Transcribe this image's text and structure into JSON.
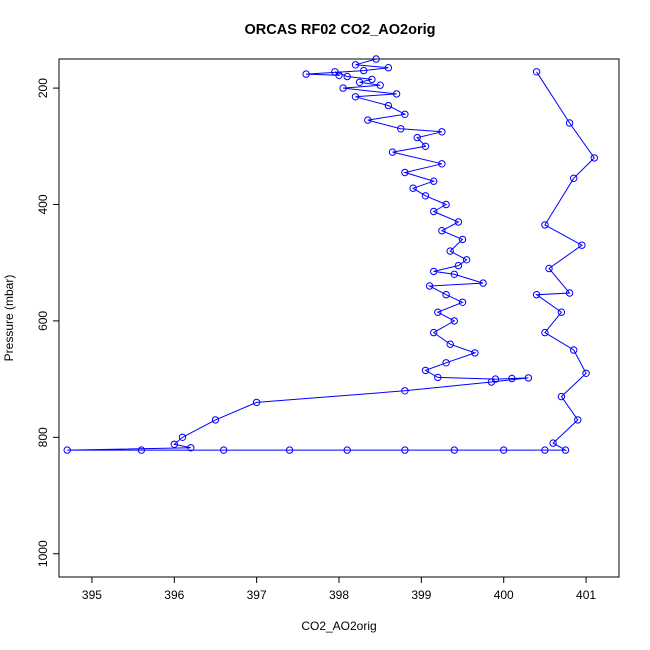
{
  "chart_data": {
    "type": "line",
    "title": "ORCAS RF02 CO2_AO2orig",
    "xlabel": "CO2_AO2orig",
    "ylabel": "Pressure (mbar)",
    "xlim": [
      394.6,
      401.4
    ],
    "ylim": [
      1040,
      150
    ],
    "y_reversed": true,
    "grid": false,
    "marker": "open-circle",
    "color": "#0000ff",
    "xticks": [
      "395",
      "396",
      "397",
      "398",
      "399",
      "400",
      "401"
    ],
    "yticks": [
      "200",
      "400",
      "600",
      "800",
      "1000"
    ],
    "series": [
      {
        "name": "",
        "points": [
          [
            398.45,
            150
          ],
          [
            398.2,
            160
          ],
          [
            398.6,
            165
          ],
          [
            398.3,
            170
          ],
          [
            397.6,
            176
          ],
          [
            398.0,
            178
          ],
          [
            397.95,
            172
          ],
          [
            398.1,
            180
          ],
          [
            398.4,
            185
          ],
          [
            398.25,
            190
          ],
          [
            398.5,
            195
          ],
          [
            398.05,
            200
          ],
          [
            398.7,
            210
          ],
          [
            398.2,
            215
          ],
          [
            398.6,
            230
          ],
          [
            398.8,
            245
          ],
          [
            398.35,
            255
          ],
          [
            398.75,
            270
          ],
          [
            399.25,
            275
          ],
          [
            398.95,
            285
          ],
          [
            399.05,
            300
          ],
          [
            398.65,
            310
          ],
          [
            399.25,
            330
          ],
          [
            398.8,
            345
          ],
          [
            399.15,
            360
          ],
          [
            398.9,
            372
          ],
          [
            399.05,
            385
          ],
          [
            399.3,
            400
          ],
          [
            399.15,
            412
          ],
          [
            399.45,
            430
          ],
          [
            399.25,
            445
          ],
          [
            399.5,
            460
          ],
          [
            399.35,
            480
          ],
          [
            399.55,
            495
          ],
          [
            399.45,
            505
          ],
          [
            399.15,
            515
          ],
          [
            399.4,
            520
          ],
          [
            399.75,
            535
          ],
          [
            399.1,
            540
          ],
          [
            399.3,
            555
          ],
          [
            399.5,
            568
          ],
          [
            399.2,
            585
          ],
          [
            399.4,
            600
          ],
          [
            399.15,
            620
          ],
          [
            399.35,
            640
          ],
          [
            399.65,
            655
          ],
          [
            399.3,
            672
          ],
          [
            399.05,
            685
          ],
          [
            399.2,
            697
          ],
          [
            399.9,
            700
          ],
          [
            400.1,
            699
          ],
          [
            400.3,
            698
          ],
          [
            399.85,
            705
          ],
          [
            398.8,
            720
          ],
          [
            397.0,
            740
          ],
          [
            396.5,
            770
          ],
          [
            396.1,
            800
          ],
          [
            396.0,
            812
          ],
          [
            396.2,
            818
          ],
          [
            394.7,
            822
          ],
          [
            395.6,
            822
          ],
          [
            396.6,
            822
          ],
          [
            397.4,
            822
          ],
          [
            398.1,
            822
          ],
          [
            398.8,
            822
          ],
          [
            399.4,
            822
          ],
          [
            400.0,
            822
          ],
          [
            400.5,
            822
          ],
          [
            400.75,
            822
          ],
          [
            400.6,
            810
          ],
          [
            400.9,
            770
          ],
          [
            400.7,
            730
          ],
          [
            401.0,
            690
          ],
          [
            400.85,
            650
          ],
          [
            400.5,
            620
          ],
          [
            400.7,
            585
          ],
          [
            400.4,
            555
          ],
          [
            400.8,
            552
          ],
          [
            400.55,
            510
          ],
          [
            400.95,
            470
          ],
          [
            400.5,
            435
          ],
          [
            400.85,
            355
          ],
          [
            401.1,
            320
          ],
          [
            400.8,
            260
          ],
          [
            400.4,
            172
          ]
        ]
      }
    ]
  }
}
